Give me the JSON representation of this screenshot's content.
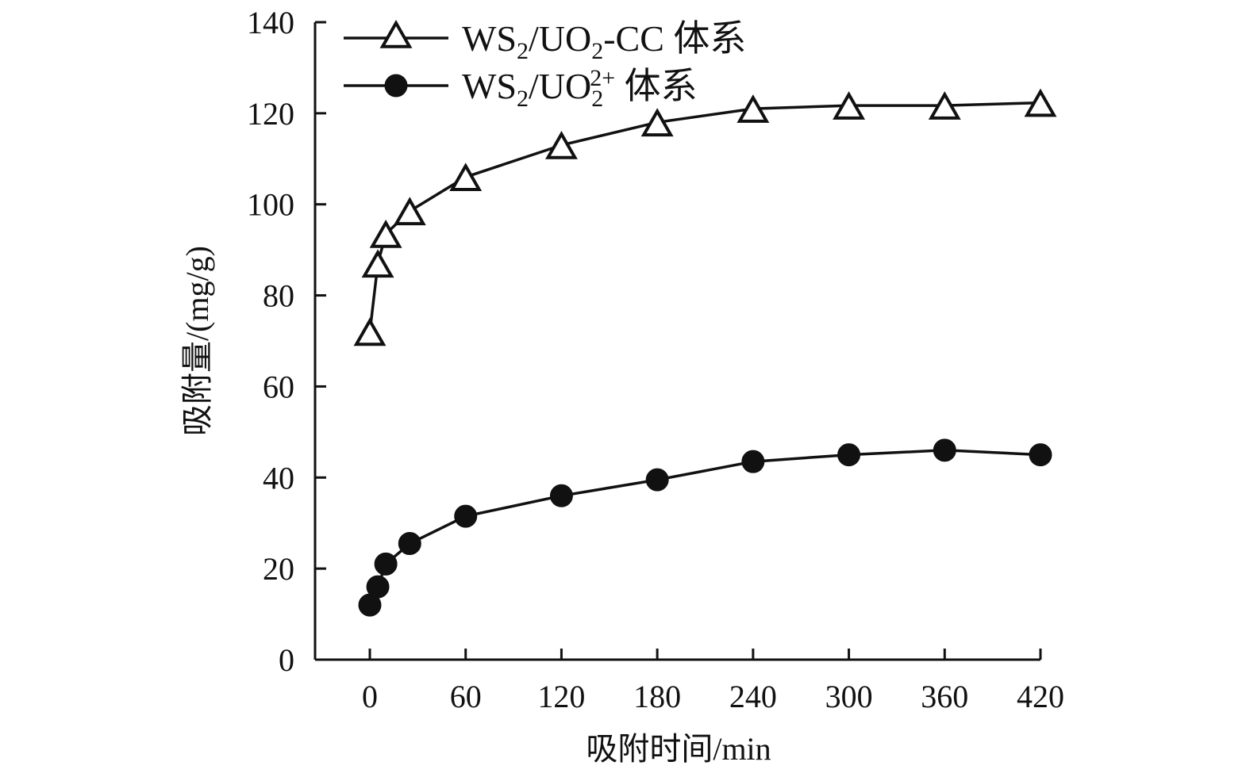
{
  "chart_data": {
    "type": "line",
    "title": "",
    "xlabel": "吸附时间/min",
    "ylabel": "吸附量/(mg/g)",
    "xlim": [
      -34,
      420
    ],
    "ylim": [
      0,
      140
    ],
    "x_ticks": [
      0,
      60,
      120,
      180,
      240,
      300,
      360,
      420
    ],
    "y_ticks": [
      0,
      20,
      40,
      60,
      80,
      100,
      120,
      140
    ],
    "x_tick_labels": [
      "0",
      "60",
      "120",
      "180",
      "240",
      "300",
      "360",
      "420"
    ],
    "y_tick_labels": [
      "0",
      "20",
      "40",
      "60",
      "80",
      "100",
      "120",
      "140"
    ],
    "grid": false,
    "legend_position": "top-left",
    "x": [
      0,
      5,
      10,
      25,
      60,
      120,
      180,
      240,
      300,
      360,
      420
    ],
    "series": [
      {
        "name": "WS2/UO2-CC 体系",
        "legend": {
          "base": "WS",
          "sub1": "2",
          "mid": "/UO",
          "sub2": "2",
          "sup": "",
          "tail": "-CC 体系"
        },
        "marker": "open-triangle",
        "color": "#111111",
        "values": [
          72,
          87,
          93.5,
          98.5,
          106,
          113,
          118,
          121,
          121.7,
          121.7,
          122.3
        ]
      },
      {
        "name": "WS2/UO2 2+ 体系",
        "legend": {
          "base": "WS",
          "sub1": "2",
          "mid": "/UO",
          "sub2": "2",
          "sup": "2+",
          "tail": " 体系"
        },
        "marker": "filled-circle",
        "color": "#111111",
        "values": [
          12,
          16,
          21,
          25.5,
          31.5,
          36,
          39.5,
          43.5,
          45,
          46,
          45
        ]
      }
    ]
  }
}
